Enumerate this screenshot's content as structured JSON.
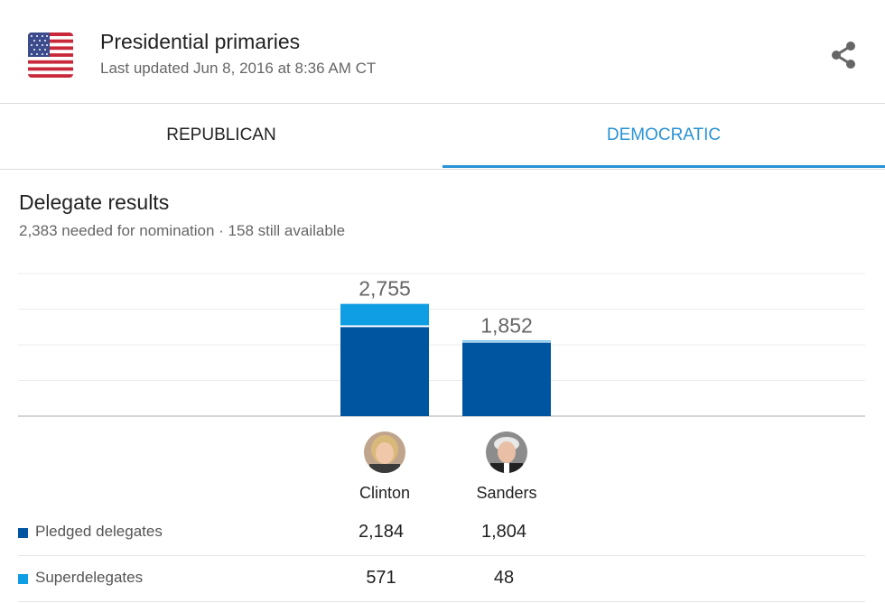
{
  "header": {
    "title": "Presidential primaries",
    "updated": "Last updated Jun 8, 2016 at 8:36 AM CT"
  },
  "tabs": [
    {
      "label": "REPUBLICAN",
      "active": false
    },
    {
      "label": "DEMOCRATIC",
      "active": true
    }
  ],
  "section": {
    "title": "Delegate results",
    "subtitle": "2,383 needed for nomination · 158 still available"
  },
  "colors": {
    "pledged": "#0055a0",
    "super": "#0f9de3",
    "accent": "#2a93d5"
  },
  "chart_data": {
    "type": "bar",
    "stacked": true,
    "categories": [
      "Clinton",
      "Sanders"
    ],
    "series": [
      {
        "name": "Pledged delegates",
        "values": [
          2184,
          1804
        ]
      },
      {
        "name": "Superdelegates",
        "values": [
          571,
          48
        ]
      }
    ],
    "totals": [
      "2,755",
      "1,852"
    ],
    "ylim": [
      0,
      3500
    ],
    "grid": true
  },
  "candidates": [
    {
      "name": "Clinton",
      "avatar_icon": "clinton-portrait-icon"
    },
    {
      "name": "Sanders",
      "avatar_icon": "sanders-portrait-icon"
    }
  ],
  "table": [
    {
      "label": "Pledged delegates",
      "values": [
        "2,184",
        "1,804"
      ]
    },
    {
      "label": "Superdelegates",
      "values": [
        "571",
        "48"
      ]
    }
  ]
}
